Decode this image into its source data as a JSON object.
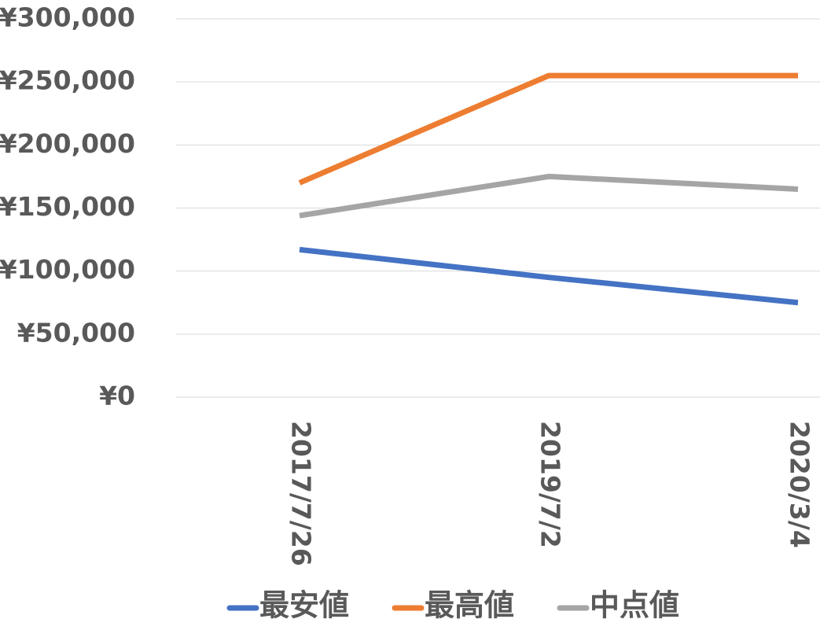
{
  "chart_data": {
    "type": "line",
    "categories": [
      "2017/7/26",
      "2019/7/2",
      "2020/3/4"
    ],
    "series": [
      {
        "name": "最安値",
        "color": "#4472c4",
        "values": [
          117000,
          95000,
          75000
        ]
      },
      {
        "name": "最高値",
        "color": "#ed7d31",
        "values": [
          170000,
          255000,
          255000
        ]
      },
      {
        "name": "中点値",
        "color": "#a5a5a5",
        "values": [
          144000,
          175000,
          165000
        ]
      }
    ],
    "ylim": [
      0,
      300000
    ],
    "yticks": [
      {
        "value": 0,
        "label": "¥0"
      },
      {
        "value": 50000,
        "label": "¥50,000"
      },
      {
        "value": 100000,
        "label": "¥100,000"
      },
      {
        "value": 150000,
        "label": "¥150,000"
      },
      {
        "value": 200000,
        "label": "¥200,000"
      },
      {
        "value": 250000,
        "label": "¥250,000"
      },
      {
        "value": 300000,
        "label": "¥300,000"
      }
    ],
    "grid": true,
    "legend": "bottom"
  }
}
